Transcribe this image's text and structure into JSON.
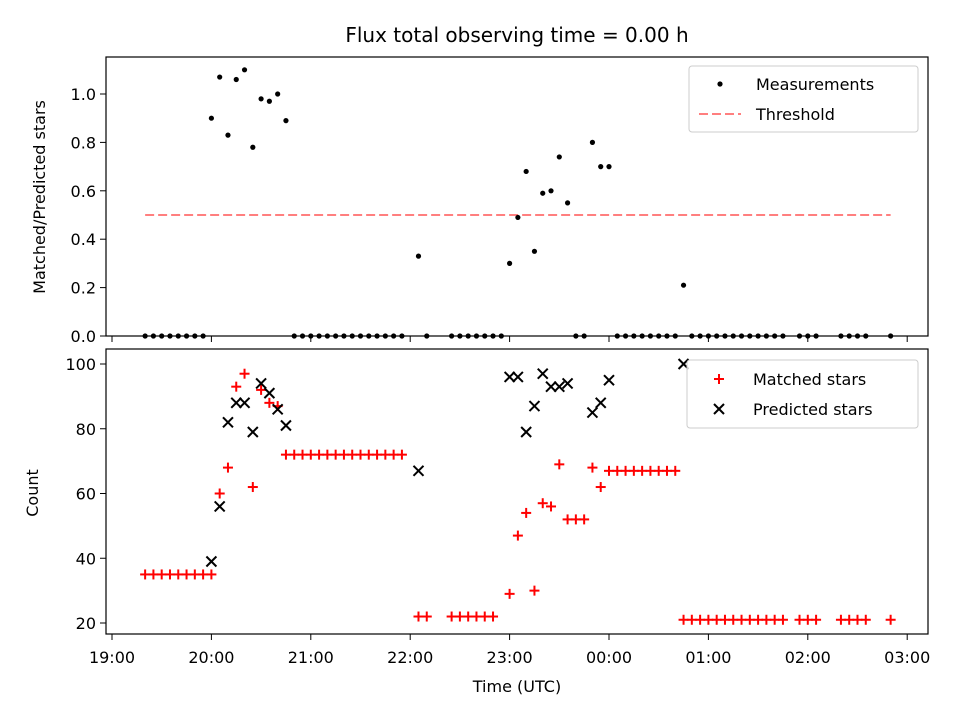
{
  "chart_data": [
    {
      "type": "scatter",
      "title": "Flux total observing time = 0.00 h",
      "ylabel": "Matched/Predicted stars",
      "xlabel": "",
      "ylim": [
        0,
        1.15
      ],
      "yticks": [
        "0.0",
        "0.2",
        "0.4",
        "0.6",
        "0.8",
        "1.0"
      ],
      "grid": false,
      "legend": "top-right",
      "legend_entries": [
        "Measurements",
        "Threshold"
      ],
      "threshold": {
        "name": "Threshold",
        "value": 0.5,
        "x_range": [
          "19:20",
          "02:50"
        ],
        "color": "#ff7f7f"
      },
      "series": [
        {
          "name": "Measurements",
          "color": "#000000",
          "points": [
            [
              "19:20",
              0
            ],
            [
              "19:25",
              0
            ],
            [
              "19:30",
              0
            ],
            [
              "19:35",
              0
            ],
            [
              "19:40",
              0
            ],
            [
              "19:45",
              0
            ],
            [
              "19:50",
              0
            ],
            [
              "19:55",
              0
            ],
            [
              "20:00",
              0.9
            ],
            [
              "20:05",
              1.07
            ],
            [
              "20:10",
              0.83
            ],
            [
              "20:15",
              1.06
            ],
            [
              "20:20",
              1.1
            ],
            [
              "20:25",
              0.78
            ],
            [
              "20:30",
              0.98
            ],
            [
              "20:35",
              0.97
            ],
            [
              "20:40",
              1.0
            ],
            [
              "20:45",
              0.89
            ],
            [
              "20:50",
              0
            ],
            [
              "20:55",
              0
            ],
            [
              "21:00",
              0
            ],
            [
              "21:05",
              0
            ],
            [
              "21:10",
              0
            ],
            [
              "21:15",
              0
            ],
            [
              "21:20",
              0
            ],
            [
              "21:25",
              0
            ],
            [
              "21:30",
              0
            ],
            [
              "21:35",
              0
            ],
            [
              "21:40",
              0
            ],
            [
              "21:45",
              0
            ],
            [
              "21:50",
              0
            ],
            [
              "21:55",
              0
            ],
            [
              "22:05",
              0.33
            ],
            [
              "22:10",
              0
            ],
            [
              "22:25",
              0
            ],
            [
              "22:30",
              0
            ],
            [
              "22:35",
              0
            ],
            [
              "22:40",
              0
            ],
            [
              "22:45",
              0
            ],
            [
              "22:50",
              0
            ],
            [
              "22:55",
              0
            ],
            [
              "23:00",
              0.3
            ],
            [
              "23:05",
              0.49
            ],
            [
              "23:10",
              0.68
            ],
            [
              "23:15",
              0.35
            ],
            [
              "23:20",
              0.59
            ],
            [
              "23:25",
              0.6
            ],
            [
              "23:30",
              0.74
            ],
            [
              "23:35",
              0.55
            ],
            [
              "23:40",
              0
            ],
            [
              "23:45",
              0
            ],
            [
              "23:50",
              0.8
            ],
            [
              "23:55",
              0.7
            ],
            [
              "00:00",
              0.7
            ],
            [
              "00:05",
              0
            ],
            [
              "00:10",
              0
            ],
            [
              "00:15",
              0
            ],
            [
              "00:20",
              0
            ],
            [
              "00:25",
              0
            ],
            [
              "00:30",
              0
            ],
            [
              "00:35",
              0
            ],
            [
              "00:40",
              0
            ],
            [
              "00:45",
              0.21
            ],
            [
              "00:50",
              0
            ],
            [
              "00:55",
              0
            ],
            [
              "01:00",
              0
            ],
            [
              "01:05",
              0
            ],
            [
              "01:10",
              0
            ],
            [
              "01:15",
              0
            ],
            [
              "01:20",
              0
            ],
            [
              "01:25",
              0
            ],
            [
              "01:30",
              0
            ],
            [
              "01:35",
              0
            ],
            [
              "01:40",
              0
            ],
            [
              "01:45",
              0
            ],
            [
              "01:55",
              0
            ],
            [
              "02:00",
              0
            ],
            [
              "02:05",
              0
            ],
            [
              "02:20",
              0
            ],
            [
              "02:25",
              0
            ],
            [
              "02:30",
              0
            ],
            [
              "02:35",
              0
            ],
            [
              "02:50",
              0
            ]
          ]
        }
      ]
    },
    {
      "type": "scatter",
      "title": "",
      "ylabel": "Count",
      "xlabel": "Time (UTC)",
      "ylim": [
        17,
        104
      ],
      "yticks": [
        "20",
        "40",
        "60",
        "80",
        "100"
      ],
      "xticks": [
        "19:00",
        "20:00",
        "21:00",
        "22:00",
        "23:00",
        "00:00",
        "01:00",
        "02:00",
        "03:00"
      ],
      "grid": false,
      "legend": "top-right",
      "legend_entries": [
        "Matched stars",
        "Predicted stars"
      ],
      "series": [
        {
          "name": "Matched stars",
          "color": "#ff0000",
          "marker": "+",
          "points": [
            [
              "19:20",
              35
            ],
            [
              "19:25",
              35
            ],
            [
              "19:30",
              35
            ],
            [
              "19:35",
              35
            ],
            [
              "19:40",
              35
            ],
            [
              "19:45",
              35
            ],
            [
              "19:50",
              35
            ],
            [
              "19:55",
              35
            ],
            [
              "20:00",
              35
            ],
            [
              "20:05",
              60
            ],
            [
              "20:10",
              68
            ],
            [
              "20:15",
              93
            ],
            [
              "20:20",
              97
            ],
            [
              "20:25",
              62
            ],
            [
              "20:30",
              92
            ],
            [
              "20:35",
              88
            ],
            [
              "20:40",
              87
            ],
            [
              "20:45",
              72
            ],
            [
              "20:50",
              72
            ],
            [
              "20:55",
              72
            ],
            [
              "21:00",
              72
            ],
            [
              "21:05",
              72
            ],
            [
              "21:10",
              72
            ],
            [
              "21:15",
              72
            ],
            [
              "21:20",
              72
            ],
            [
              "21:25",
              72
            ],
            [
              "21:30",
              72
            ],
            [
              "21:35",
              72
            ],
            [
              "21:40",
              72
            ],
            [
              "21:45",
              72
            ],
            [
              "21:50",
              72
            ],
            [
              "21:55",
              72
            ],
            [
              "22:05",
              22
            ],
            [
              "22:10",
              22
            ],
            [
              "22:25",
              22
            ],
            [
              "22:30",
              22
            ],
            [
              "22:35",
              22
            ],
            [
              "22:40",
              22
            ],
            [
              "22:45",
              22
            ],
            [
              "22:50",
              22
            ],
            [
              "23:00",
              29
            ],
            [
              "23:05",
              47
            ],
            [
              "23:10",
              54
            ],
            [
              "23:15",
              30
            ],
            [
              "23:20",
              57
            ],
            [
              "23:25",
              56
            ],
            [
              "23:30",
              69
            ],
            [
              "23:35",
              52
            ],
            [
              "23:40",
              52
            ],
            [
              "23:45",
              52
            ],
            [
              "23:50",
              68
            ],
            [
              "23:55",
              62
            ],
            [
              "00:00",
              67
            ],
            [
              "00:05",
              67
            ],
            [
              "00:10",
              67
            ],
            [
              "00:15",
              67
            ],
            [
              "00:20",
              67
            ],
            [
              "00:25",
              67
            ],
            [
              "00:30",
              67
            ],
            [
              "00:35",
              67
            ],
            [
              "00:40",
              67
            ],
            [
              "00:45",
              21
            ],
            [
              "00:50",
              21
            ],
            [
              "00:55",
              21
            ],
            [
              "01:00",
              21
            ],
            [
              "01:05",
              21
            ],
            [
              "01:10",
              21
            ],
            [
              "01:15",
              21
            ],
            [
              "01:20",
              21
            ],
            [
              "01:25",
              21
            ],
            [
              "01:30",
              21
            ],
            [
              "01:35",
              21
            ],
            [
              "01:40",
              21
            ],
            [
              "01:45",
              21
            ],
            [
              "01:55",
              21
            ],
            [
              "02:00",
              21
            ],
            [
              "02:05",
              21
            ],
            [
              "02:20",
              21
            ],
            [
              "02:25",
              21
            ],
            [
              "02:30",
              21
            ],
            [
              "02:35",
              21
            ],
            [
              "02:50",
              21
            ]
          ]
        },
        {
          "name": "Predicted stars",
          "color": "#000000",
          "marker": "x",
          "points": [
            [
              "20:00",
              39
            ],
            [
              "20:05",
              56
            ],
            [
              "20:10",
              82
            ],
            [
              "20:15",
              88
            ],
            [
              "20:20",
              88
            ],
            [
              "20:25",
              79
            ],
            [
              "20:30",
              94
            ],
            [
              "20:35",
              91
            ],
            [
              "20:40",
              86
            ],
            [
              "20:45",
              81
            ],
            [
              "22:05",
              67
            ],
            [
              "23:00",
              96
            ],
            [
              "23:05",
              96
            ],
            [
              "23:10",
              79
            ],
            [
              "23:15",
              87
            ],
            [
              "23:20",
              97
            ],
            [
              "23:25",
              93
            ],
            [
              "23:30",
              93
            ],
            [
              "23:35",
              94
            ],
            [
              "23:50",
              85
            ],
            [
              "23:55",
              88
            ],
            [
              "00:00",
              95
            ],
            [
              "00:45",
              100
            ]
          ]
        }
      ]
    }
  ]
}
